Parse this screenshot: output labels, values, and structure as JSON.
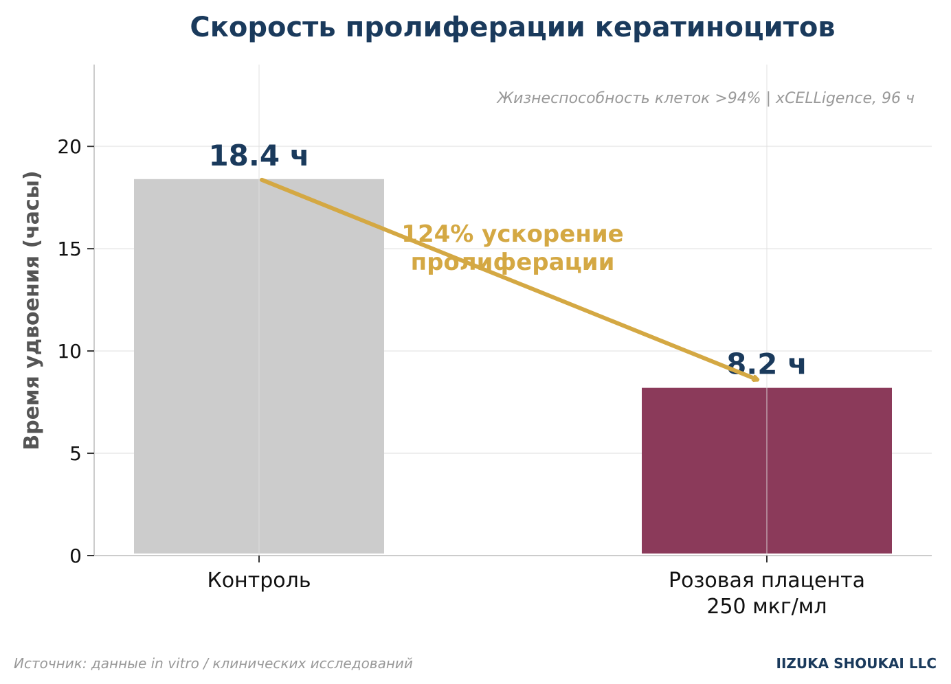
{
  "chart_data": {
    "type": "bar",
    "title": "Скорость пролиферации кератиноцитов",
    "ylabel": "Время удвоения (часы)",
    "xlabel": "",
    "ylim": [
      0,
      24
    ],
    "yticks": [
      0,
      5,
      10,
      15,
      20
    ],
    "grid": true,
    "categories": [
      [
        "Контроль"
      ],
      [
        "Розовая плацента",
        "250 мкг/мл"
      ]
    ],
    "values": [
      18.4,
      8.2
    ],
    "value_labels": [
      "18.4 ч",
      "8.2 ч"
    ],
    "colors": [
      "#cccccc",
      "#8b3a5a"
    ],
    "annotation": {
      "lines": [
        "124% ускорение",
        "пролиферации"
      ],
      "color": "#d4a843",
      "arrow_from": 0,
      "arrow_to": 1
    },
    "note": "Жизнеспособность клеток >94% | xCELLigence, 96 ч"
  },
  "footer": {
    "source": "Источник: данные in vitro / клинических исследований",
    "brand": "IIZUKA SHOUKAI LLC"
  }
}
